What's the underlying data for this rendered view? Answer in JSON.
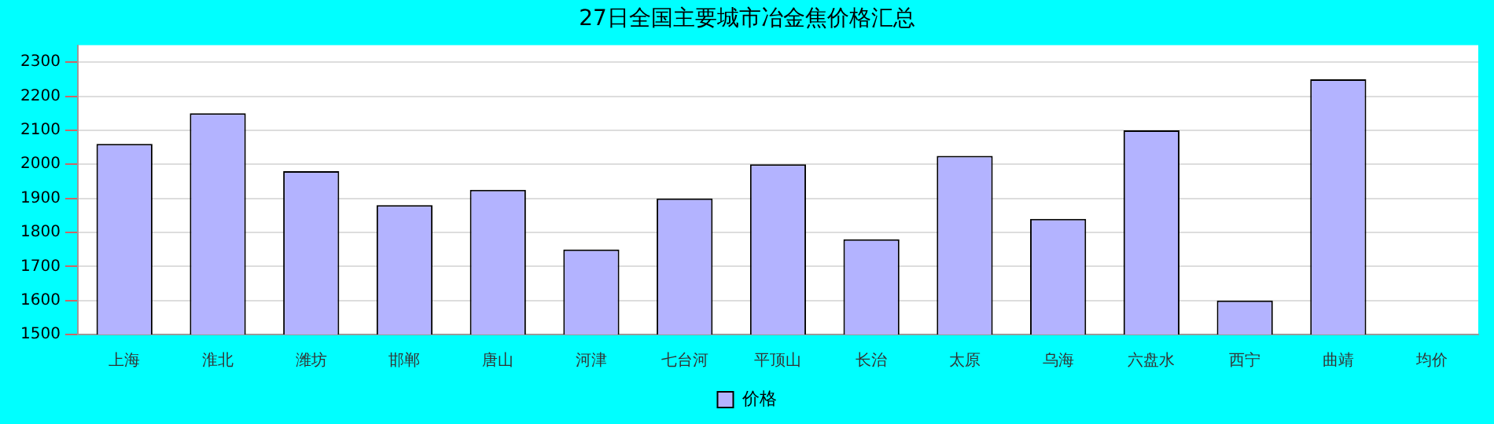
{
  "chart_data": {
    "type": "bar",
    "title": "27日全国主要城市冶金焦价格汇总",
    "categories": [
      "上海",
      "淮北",
      "潍坊",
      "邯郸",
      "唐山",
      "河津",
      "七台河",
      "平顶山",
      "长治",
      "太原",
      "乌海",
      "六盘水",
      "西宁",
      "曲靖",
      "均价"
    ],
    "series": [
      {
        "name": "价格",
        "color": "#b3b3ff",
        "values": [
          2060,
          2150,
          1980,
          1880,
          1925,
          1750,
          1900,
          2000,
          1780,
          2025,
          1840,
          2100,
          1600,
          2250,
          null
        ]
      }
    ],
    "ylim": [
      1500,
      2350
    ],
    "yticks": [
      1500,
      1600,
      1700,
      1800,
      1900,
      2000,
      2100,
      2200,
      2300
    ],
    "grid": "y",
    "legend": "bottom"
  }
}
